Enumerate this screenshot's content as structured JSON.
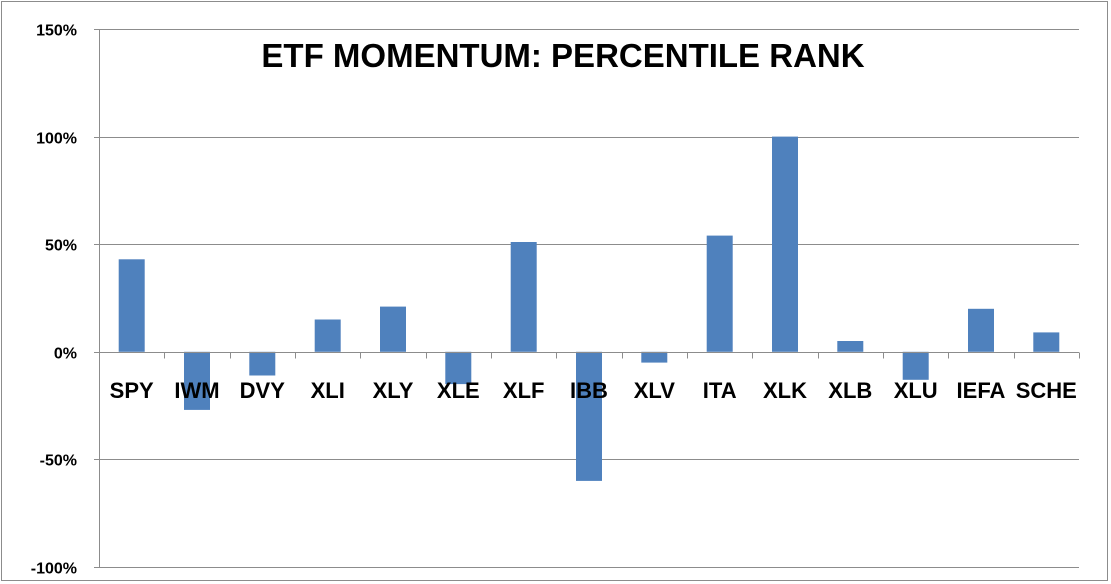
{
  "chart_data": {
    "type": "bar",
    "title": "ETF MOMENTUM: PERCENTILE RANK",
    "xlabel": "",
    "ylabel": "",
    "categories": [
      "SPY",
      "IWM",
      "DVY",
      "XLI",
      "XLY",
      "XLE",
      "XLF",
      "IBB",
      "XLV",
      "ITA",
      "XLK",
      "XLB",
      "XLU",
      "IEFA",
      "SCHE"
    ],
    "series": [
      {
        "values": [
          0.43,
          -0.27,
          -0.11,
          0.15,
          0.21,
          -0.15,
          0.51,
          -0.6,
          -0.05,
          0.54,
          1.0,
          0.05,
          -0.13,
          0.2,
          0.09
        ]
      }
    ],
    "ylim": [
      -1.0,
      1.5
    ],
    "yticks": [
      -1.0,
      -0.5,
      0.0,
      0.5,
      1.0,
      1.5
    ],
    "ytick_labels": [
      "-100%",
      "-50%",
      "0%",
      "50%",
      "100%",
      "150%"
    ],
    "grid": true,
    "legend": "none",
    "colors": {
      "bar": "#4f81bd",
      "gridline": "#8c8c8c",
      "axis": "#8c8c8c",
      "text": "#000000"
    }
  }
}
